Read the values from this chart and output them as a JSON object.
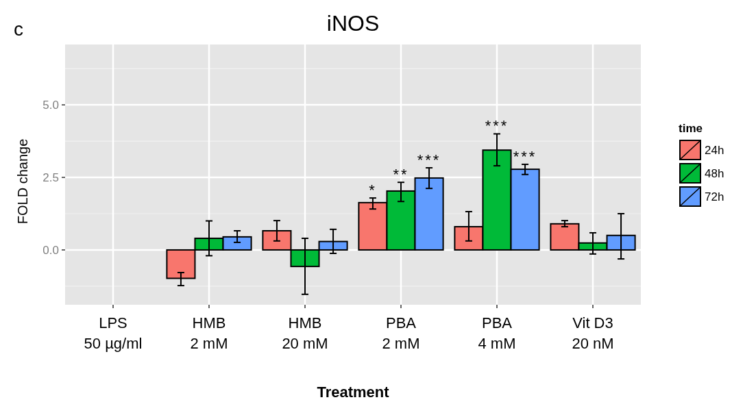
{
  "chart_data": {
    "type": "bar",
    "title": "iNOS",
    "xlabel": "Treatment",
    "ylabel": "FOLD change",
    "legend_title": "time",
    "annotations": [
      "c"
    ],
    "categories": [
      "LPS\n50 µg/ml",
      "HMB\n2 mM",
      "HMB\n20 mM",
      "PBA\n2 mM",
      "PBA\n4 mM",
      "Vit D3\n20 nM"
    ],
    "series": [
      {
        "name": "24h",
        "color": "#f8766d",
        "values": [
          null,
          -0.98,
          0.66,
          1.63,
          0.8,
          0.9
        ],
        "errors": [
          null,
          [
            -1.23,
            -0.78
          ],
          [
            0.31,
            1.01
          ],
          [
            1.41,
            1.79
          ],
          [
            0.31,
            1.32
          ],
          [
            0.8,
            1.01
          ]
        ],
        "value_labels": [
          null,
          null,
          null,
          "*",
          null,
          null
        ]
      },
      {
        "name": "48h",
        "color": "#00ba38",
        "values": [
          null,
          0.4,
          -0.57,
          2.03,
          3.44,
          0.24
        ],
        "errors": [
          null,
          [
            -0.2,
            1.0
          ],
          [
            -1.53,
            0.4
          ],
          [
            1.67,
            2.33
          ],
          [
            2.9,
            4.0
          ],
          [
            -0.14,
            0.59
          ]
        ],
        "value_labels": [
          null,
          null,
          null,
          "**",
          "***",
          null
        ]
      },
      {
        "name": "72h",
        "color": "#619cff",
        "values": [
          null,
          0.45,
          0.29,
          2.48,
          2.78,
          0.5
        ],
        "errors": [
          null,
          [
            0.26,
            0.66
          ],
          [
            -0.12,
            0.71
          ],
          [
            2.12,
            2.83
          ],
          [
            2.6,
            2.95
          ],
          [
            -0.31,
            1.25
          ]
        ],
        "value_labels": [
          null,
          null,
          null,
          "***",
          "***",
          null
        ]
      }
    ],
    "ylim": [
      -1.89,
      7.08
    ],
    "yticks": [
      {
        "value": 0,
        "label": "0.0"
      },
      {
        "value": 2.5,
        "label": "2.5"
      },
      {
        "value": 5,
        "label": "5.0"
      }
    ],
    "grid": true,
    "legend": "right"
  }
}
